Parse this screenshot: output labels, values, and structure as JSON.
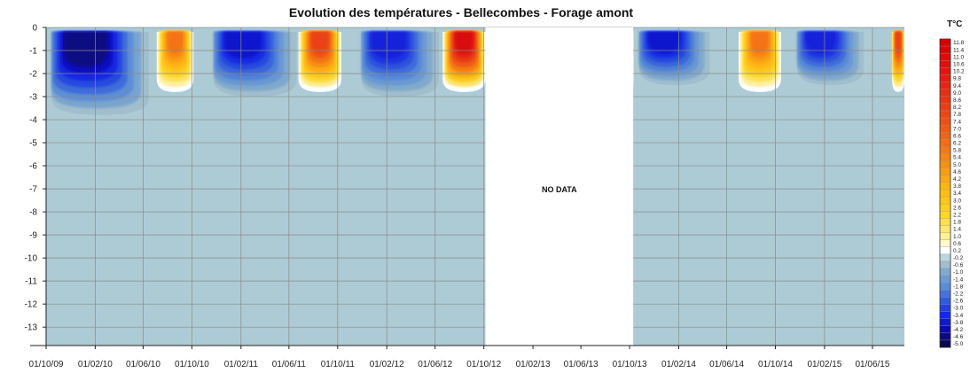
{
  "chart_data": {
    "type": "heatmap",
    "title": "Evolution des températures - Bellecombes - Forage amont",
    "xlabel": "",
    "ylabel": "",
    "colorbar_unit": "T°C",
    "x_ticks": [
      "01/10/09",
      "01/02/10",
      "01/06/10",
      "01/10/10",
      "01/02/11",
      "01/06/11",
      "01/10/11",
      "01/02/12",
      "01/06/12",
      "01/10/12",
      "01/02/13",
      "01/06/13",
      "01/10/13",
      "01/02/14",
      "01/06/14",
      "01/10/14",
      "01/02/15",
      "01/06/15"
    ],
    "y_ticks": [
      0,
      -1,
      -2,
      -3,
      -4,
      -5,
      -6,
      -7,
      -8,
      -9,
      -10,
      -11,
      -12,
      -13
    ],
    "ylim": [
      -13.8,
      0
    ],
    "xlim": [
      "2009-10-01",
      "2015-08-20"
    ],
    "colorbar_ticks": [
      11.8,
      11.4,
      11.0,
      10.6,
      10.2,
      9.8,
      9.4,
      9.0,
      8.6,
      8.2,
      7.8,
      7.4,
      7.0,
      6.6,
      6.2,
      5.8,
      5.4,
      5.0,
      4.6,
      4.2,
      3.8,
      3.4,
      3.0,
      2.6,
      2.2,
      1.8,
      1.4,
      1.0,
      0.6,
      0.2,
      -0.2,
      -0.6,
      -1.0,
      -1.4,
      -1.8,
      -2.2,
      -2.6,
      -3.0,
      -3.4,
      -3.8,
      -4.2,
      -4.6,
      -5.0
    ],
    "clim": [
      -5.0,
      11.8
    ],
    "no_data_label": "NO DATA",
    "no_data_range": [
      "2012-10-05",
      "2013-10-10"
    ],
    "grid": true,
    "background_temperature": -0.4,
    "cold_seasons": [
      {
        "start": "2009-10-15",
        "end": "2010-06-15",
        "min_temp": -4.6,
        "depth": -3.8
      },
      {
        "start": "2010-11-25",
        "end": "2011-06-20",
        "min_temp": -3.8,
        "depth": -3.0
      },
      {
        "start": "2011-11-30",
        "end": "2012-06-10",
        "min_temp": -3.6,
        "depth": -3.0
      },
      {
        "start": "2013-10-25",
        "end": "2014-04-20",
        "min_temp": -3.8,
        "depth": -2.5
      },
      {
        "start": "2014-11-25",
        "end": "2015-05-10",
        "min_temp": -3.6,
        "depth": -2.5
      }
    ],
    "warm_seasons": [
      {
        "start": "2010-07-05",
        "end": "2010-10-05",
        "max_temp": 6.0,
        "depth": -2.8
      },
      {
        "start": "2011-06-25",
        "end": "2011-10-10",
        "max_temp": 8.0,
        "depth": -2.8
      },
      {
        "start": "2012-06-20",
        "end": "2012-10-05",
        "max_temp": 11.0,
        "depth": -2.8
      },
      {
        "start": "2013-10-01",
        "end": "2013-10-10",
        "max_temp": 3.0,
        "depth": -2.8
      },
      {
        "start": "2014-07-01",
        "end": "2014-10-15",
        "max_temp": 6.0,
        "depth": -2.8
      },
      {
        "start": "2015-07-20",
        "end": "2015-08-20",
        "max_temp": 8.0,
        "depth": -2.8
      }
    ]
  }
}
